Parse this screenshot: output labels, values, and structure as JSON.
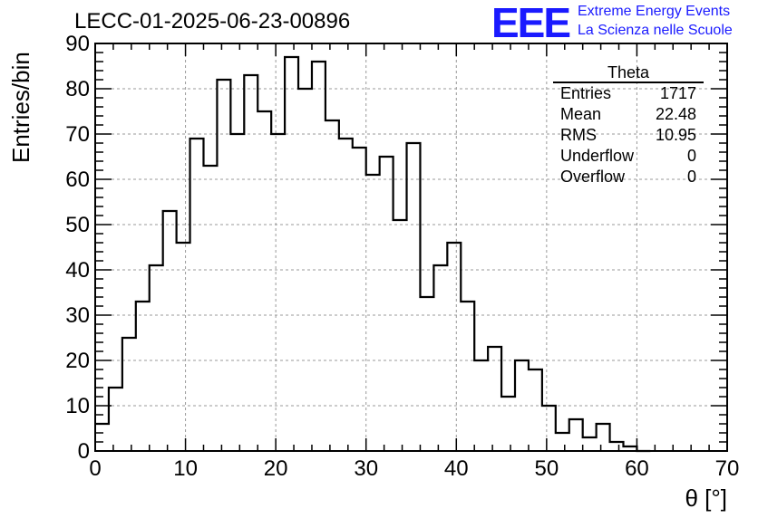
{
  "title": "LECC-01-2025-06-23-00896",
  "logo": {
    "mark": "EEE",
    "line1": "Extreme Energy Events",
    "line2": "La Scienza nelle Scuole",
    "color": "#1a1aff"
  },
  "stats": {
    "name": "Theta",
    "rows": [
      {
        "label": "Entries",
        "value": "1717"
      },
      {
        "label": "Mean",
        "value": "22.48"
      },
      {
        "label": "RMS",
        "value": "10.95"
      },
      {
        "label": "Underflow",
        "value": "0"
      },
      {
        "label": "Overflow",
        "value": "0"
      }
    ]
  },
  "chart_data": {
    "type": "bar",
    "style": "step-histogram",
    "xlabel": "θ [°]",
    "ylabel": "Entries/bin",
    "xlim": [
      0,
      70
    ],
    "ylim": [
      0,
      90
    ],
    "grid": true,
    "bin_width": 1.5,
    "bin_start": 0,
    "values": [
      6,
      14,
      25,
      33,
      41,
      53,
      46,
      69,
      63,
      82,
      70,
      83,
      75,
      70,
      87,
      80,
      86,
      73,
      69,
      67,
      61,
      65,
      51,
      68,
      34,
      41,
      46,
      33,
      20,
      23,
      12,
      20,
      18,
      10,
      4,
      7,
      3,
      6,
      2,
      1,
      0
    ],
    "x_ticks": [
      0,
      10,
      20,
      30,
      40,
      50,
      60,
      70
    ],
    "y_ticks": [
      0,
      10,
      20,
      30,
      40,
      50,
      60,
      70,
      80,
      90
    ]
  }
}
